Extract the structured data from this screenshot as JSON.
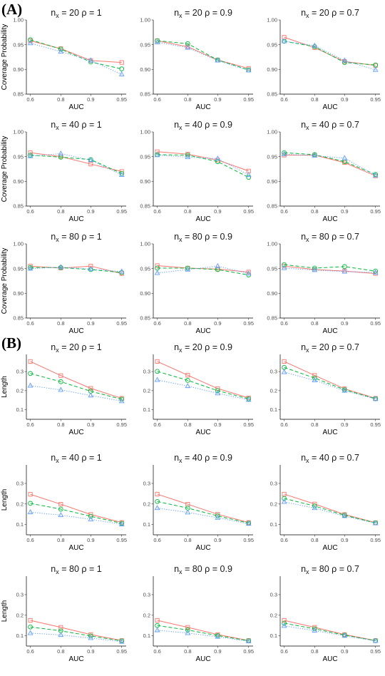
{
  "figure": {
    "panel_labels": [
      "(A)",
      "(B)"
    ],
    "series_colors": {
      "square": "#F8766D",
      "circle": "#00BA38",
      "triangle": "#619CFF"
    },
    "series_styles": {
      "square": "solid line, open square markers",
      "circle": "dashed line, open circle markers",
      "triangle": "dotted line, open triangle markers"
    }
  },
  "chart_data": [
    {
      "type": "line",
      "panel": "A",
      "title": "n_x = 20  ρ = 1",
      "xlabel": "AUC",
      "ylabel": "Coverage Probability",
      "categories": [
        "0.6",
        "0.8",
        "0.9",
        "0.95"
      ],
      "ylim": [
        0.85,
        1.0
      ],
      "yticks": [
        "0.85",
        "0.90",
        "0.95",
        "1.00"
      ],
      "series": [
        {
          "marker": "square",
          "values": [
            0.958,
            0.942,
            0.918,
            0.914
          ]
        },
        {
          "marker": "circle",
          "values": [
            0.96,
            0.941,
            0.915,
            0.901
          ]
        },
        {
          "marker": "triangle",
          "values": [
            0.953,
            0.936,
            0.918,
            0.89
          ]
        }
      ]
    },
    {
      "type": "line",
      "panel": "A",
      "title": "n_x = 20  ρ = 0.9",
      "xlabel": "AUC",
      "ylabel": "",
      "categories": [
        "0.6",
        "0.8",
        "0.9",
        "0.95"
      ],
      "ylim": [
        0.85,
        1.0
      ],
      "yticks": [
        "0.85",
        "0.90",
        "0.95",
        "1.00"
      ],
      "series": [
        {
          "marker": "square",
          "values": [
            0.958,
            0.946,
            0.919,
            0.902
          ]
        },
        {
          "marker": "circle",
          "values": [
            0.958,
            0.952,
            0.919,
            0.899
          ]
        },
        {
          "marker": "triangle",
          "values": [
            0.955,
            0.944,
            0.918,
            0.898
          ]
        }
      ]
    },
    {
      "type": "line",
      "panel": "A",
      "title": "n_x = 20  ρ = 0.7",
      "xlabel": "AUC",
      "ylabel": "",
      "categories": [
        "0.6",
        "0.8",
        "0.9",
        "0.95"
      ],
      "ylim": [
        0.85,
        1.0
      ],
      "yticks": [
        "0.85",
        "0.90",
        "0.95",
        "1.00"
      ],
      "series": [
        {
          "marker": "square",
          "values": [
            0.965,
            0.944,
            0.916,
            0.908
          ]
        },
        {
          "marker": "circle",
          "values": [
            0.957,
            0.946,
            0.914,
            0.909
          ]
        },
        {
          "marker": "triangle",
          "values": [
            0.957,
            0.948,
            0.918,
            0.899
          ]
        }
      ]
    },
    {
      "type": "line",
      "panel": "A",
      "title": "n_x = 40  ρ = 1",
      "xlabel": "AUC",
      "ylabel": "Coverage Probability",
      "categories": [
        "0.6",
        "0.8",
        "0.9",
        "0.95"
      ],
      "ylim": [
        0.85,
        1.0
      ],
      "yticks": [
        "0.85",
        "0.90",
        "0.95",
        "1.00"
      ],
      "series": [
        {
          "marker": "square",
          "values": [
            0.958,
            0.95,
            0.935,
            0.92
          ]
        },
        {
          "marker": "circle",
          "values": [
            0.953,
            0.949,
            0.944,
            0.916
          ]
        },
        {
          "marker": "triangle",
          "values": [
            0.951,
            0.956,
            0.943,
            0.913
          ]
        }
      ]
    },
    {
      "type": "line",
      "panel": "A",
      "title": "n_x = 40  ρ = 0.9",
      "xlabel": "AUC",
      "ylabel": "",
      "categories": [
        "0.6",
        "0.8",
        "0.9",
        "0.95"
      ],
      "ylim": [
        0.85,
        1.0
      ],
      "yticks": [
        "0.85",
        "0.90",
        "0.95",
        "1.00"
      ],
      "series": [
        {
          "marker": "square",
          "values": [
            0.96,
            0.955,
            0.943,
            0.921
          ]
        },
        {
          "marker": "circle",
          "values": [
            0.954,
            0.953,
            0.94,
            0.908
          ]
        },
        {
          "marker": "triangle",
          "values": [
            0.953,
            0.949,
            0.946,
            0.913
          ]
        }
      ]
    },
    {
      "type": "line",
      "panel": "A",
      "title": "n_x = 40  ρ = 0.7",
      "xlabel": "AUC",
      "ylabel": "",
      "categories": [
        "0.6",
        "0.8",
        "0.9",
        "0.95"
      ],
      "ylim": [
        0.85,
        1.0
      ],
      "yticks": [
        "0.85",
        "0.90",
        "0.95",
        "1.00"
      ],
      "series": [
        {
          "marker": "square",
          "values": [
            0.953,
            0.953,
            0.938,
            0.911
          ]
        },
        {
          "marker": "circle",
          "values": [
            0.958,
            0.954,
            0.94,
            0.914
          ]
        },
        {
          "marker": "triangle",
          "values": [
            0.955,
            0.952,
            0.947,
            0.912
          ]
        }
      ]
    },
    {
      "type": "line",
      "panel": "A",
      "title": "n_x = 80  ρ = 1",
      "xlabel": "AUC",
      "ylabel": "Coverage Probability",
      "categories": [
        "0.6",
        "0.8",
        "0.9",
        "0.95"
      ],
      "ylim": [
        0.85,
        1.0
      ],
      "yticks": [
        "0.85",
        "0.90",
        "0.95",
        "1.00"
      ],
      "series": [
        {
          "marker": "square",
          "values": [
            0.955,
            0.951,
            0.955,
            0.94
          ]
        },
        {
          "marker": "circle",
          "values": [
            0.952,
            0.952,
            0.948,
            0.942
          ]
        },
        {
          "marker": "triangle",
          "values": [
            0.95,
            0.953,
            0.949,
            0.944
          ]
        }
      ]
    },
    {
      "type": "line",
      "panel": "A",
      "title": "n_x = 80  ρ = 0.9",
      "xlabel": "AUC",
      "ylabel": "",
      "categories": [
        "0.6",
        "0.8",
        "0.9",
        "0.95"
      ],
      "ylim": [
        0.85,
        1.0
      ],
      "yticks": [
        "0.85",
        "0.90",
        "0.95",
        "1.00"
      ],
      "series": [
        {
          "marker": "square",
          "values": [
            0.956,
            0.951,
            0.949,
            0.943
          ]
        },
        {
          "marker": "circle",
          "values": [
            0.951,
            0.951,
            0.948,
            0.937
          ]
        },
        {
          "marker": "triangle",
          "values": [
            0.941,
            0.948,
            0.955,
            0.94
          ]
        }
      ]
    },
    {
      "type": "line",
      "panel": "A",
      "title": "n_x = 80  ρ = 0.7",
      "xlabel": "AUC",
      "ylabel": "",
      "categories": [
        "0.6",
        "0.8",
        "0.9",
        "0.95"
      ],
      "ylim": [
        0.85,
        1.0
      ],
      "yticks": [
        "0.85",
        "0.90",
        "0.95",
        "1.00"
      ],
      "series": [
        {
          "marker": "square",
          "values": [
            0.955,
            0.948,
            0.945,
            0.94
          ]
        },
        {
          "marker": "circle",
          "values": [
            0.958,
            0.951,
            0.954,
            0.945
          ]
        },
        {
          "marker": "triangle",
          "values": [
            0.951,
            0.947,
            0.944,
            0.942
          ]
        }
      ]
    },
    {
      "type": "line",
      "panel": "B",
      "title": "n_x = 20  ρ = 1",
      "xlabel": "AUC",
      "ylabel": "Length",
      "categories": [
        "0.6",
        "0.8",
        "0.9",
        "0.95"
      ],
      "ylim": [
        0.05,
        0.39
      ],
      "yticks": [
        "0.1",
        "0.2",
        "0.3"
      ],
      "series": [
        {
          "marker": "square",
          "values": [
            0.353,
            0.279,
            0.212,
            0.16
          ]
        },
        {
          "marker": "circle",
          "values": [
            0.29,
            0.247,
            0.197,
            0.155
          ]
        },
        {
          "marker": "triangle",
          "values": [
            0.226,
            0.204,
            0.175,
            0.145
          ]
        }
      ]
    },
    {
      "type": "line",
      "panel": "B",
      "title": "n_x = 20  ρ = 0.9",
      "xlabel": "AUC",
      "ylabel": "",
      "categories": [
        "0.6",
        "0.8",
        "0.9",
        "0.95"
      ],
      "ylim": [
        0.05,
        0.39
      ],
      "yticks": [
        "0.1",
        "0.2",
        "0.3"
      ],
      "series": [
        {
          "marker": "square",
          "values": [
            0.353,
            0.281,
            0.211,
            0.162
          ]
        },
        {
          "marker": "circle",
          "values": [
            0.301,
            0.254,
            0.2,
            0.157
          ]
        },
        {
          "marker": "triangle",
          "values": [
            0.256,
            0.224,
            0.186,
            0.152
          ]
        }
      ]
    },
    {
      "type": "line",
      "panel": "B",
      "title": "n_x = 20  ρ = 0.7",
      "xlabel": "AUC",
      "ylabel": "",
      "categories": [
        "0.6",
        "0.8",
        "0.9",
        "0.95"
      ],
      "ylim": [
        0.05,
        0.39
      ],
      "yticks": [
        "0.1",
        "0.2",
        "0.3"
      ],
      "series": [
        {
          "marker": "square",
          "values": [
            0.353,
            0.28,
            0.21,
            0.16
          ]
        },
        {
          "marker": "circle",
          "values": [
            0.322,
            0.266,
            0.205,
            0.158
          ]
        },
        {
          "marker": "triangle",
          "values": [
            0.297,
            0.254,
            0.2,
            0.156
          ]
        }
      ]
    },
    {
      "type": "line",
      "panel": "B",
      "title": "n_x = 40  ρ = 1",
      "xlabel": "AUC",
      "ylabel": "Length",
      "categories": [
        "0.6",
        "0.8",
        "0.9",
        "0.95"
      ],
      "ylim": [
        0.05,
        0.39
      ],
      "yticks": [
        "0.1",
        "0.2",
        "0.3"
      ],
      "series": [
        {
          "marker": "square",
          "values": [
            0.247,
            0.199,
            0.149,
            0.11
          ]
        },
        {
          "marker": "circle",
          "values": [
            0.203,
            0.175,
            0.14,
            0.106
          ]
        },
        {
          "marker": "triangle",
          "values": [
            0.16,
            0.146,
            0.125,
            0.101
          ]
        }
      ]
    },
    {
      "type": "line",
      "panel": "B",
      "title": "n_x = 40  ρ = 0.9",
      "xlabel": "AUC",
      "ylabel": "",
      "categories": [
        "0.6",
        "0.8",
        "0.9",
        "0.95"
      ],
      "ylim": [
        0.05,
        0.39
      ],
      "yticks": [
        "0.1",
        "0.2",
        "0.3"
      ],
      "series": [
        {
          "marker": "square",
          "values": [
            0.248,
            0.199,
            0.15,
            0.11
          ]
        },
        {
          "marker": "circle",
          "values": [
            0.212,
            0.18,
            0.142,
            0.107
          ]
        },
        {
          "marker": "triangle",
          "values": [
            0.18,
            0.159,
            0.133,
            0.104
          ]
        }
      ]
    },
    {
      "type": "line",
      "panel": "B",
      "title": "n_x = 40  ρ = 0.7",
      "xlabel": "AUC",
      "ylabel": "",
      "categories": [
        "0.6",
        "0.8",
        "0.9",
        "0.95"
      ],
      "ylim": [
        0.05,
        0.39
      ],
      "yticks": [
        "0.1",
        "0.2",
        "0.3"
      ],
      "series": [
        {
          "marker": "square",
          "values": [
            0.248,
            0.2,
            0.149,
            0.109
          ]
        },
        {
          "marker": "circle",
          "values": [
            0.227,
            0.19,
            0.145,
            0.108
          ]
        },
        {
          "marker": "triangle",
          "values": [
            0.21,
            0.18,
            0.141,
            0.106
          ]
        }
      ]
    },
    {
      "type": "line",
      "panel": "B",
      "title": "n_x = 80  ρ = 1",
      "xlabel": "AUC",
      "ylabel": "Length",
      "categories": [
        "0.6",
        "0.8",
        "0.9",
        "0.95"
      ],
      "ylim": [
        0.05,
        0.39
      ],
      "yticks": [
        "0.1",
        "0.2",
        "0.3"
      ],
      "series": [
        {
          "marker": "square",
          "values": [
            0.175,
            0.141,
            0.106,
            0.077
          ]
        },
        {
          "marker": "circle",
          "values": [
            0.143,
            0.124,
            0.099,
            0.075
          ]
        },
        {
          "marker": "triangle",
          "values": [
            0.113,
            0.104,
            0.089,
            0.071
          ]
        }
      ]
    },
    {
      "type": "line",
      "panel": "B",
      "title": "n_x = 80  ρ = 0.9",
      "xlabel": "AUC",
      "ylabel": "",
      "categories": [
        "0.6",
        "0.8",
        "0.9",
        "0.95"
      ],
      "ylim": [
        0.05,
        0.39
      ],
      "yticks": [
        "0.1",
        "0.2",
        "0.3"
      ],
      "series": [
        {
          "marker": "square",
          "values": [
            0.175,
            0.141,
            0.106,
            0.077
          ]
        },
        {
          "marker": "circle",
          "values": [
            0.15,
            0.128,
            0.101,
            0.076
          ]
        },
        {
          "marker": "triangle",
          "values": [
            0.127,
            0.113,
            0.095,
            0.073
          ]
        }
      ]
    },
    {
      "type": "line",
      "panel": "B",
      "title": "n_x = 80  ρ = 0.7",
      "xlabel": "AUC",
      "ylabel": "",
      "categories": [
        "0.6",
        "0.8",
        "0.9",
        "0.95"
      ],
      "ylim": [
        0.05,
        0.39
      ],
      "yticks": [
        "0.1",
        "0.2",
        "0.3"
      ],
      "series": [
        {
          "marker": "square",
          "values": [
            0.175,
            0.141,
            0.106,
            0.077
          ]
        },
        {
          "marker": "circle",
          "values": [
            0.161,
            0.134,
            0.103,
            0.076
          ]
        },
        {
          "marker": "triangle",
          "values": [
            0.148,
            0.125,
            0.1,
            0.075
          ]
        }
      ]
    }
  ]
}
